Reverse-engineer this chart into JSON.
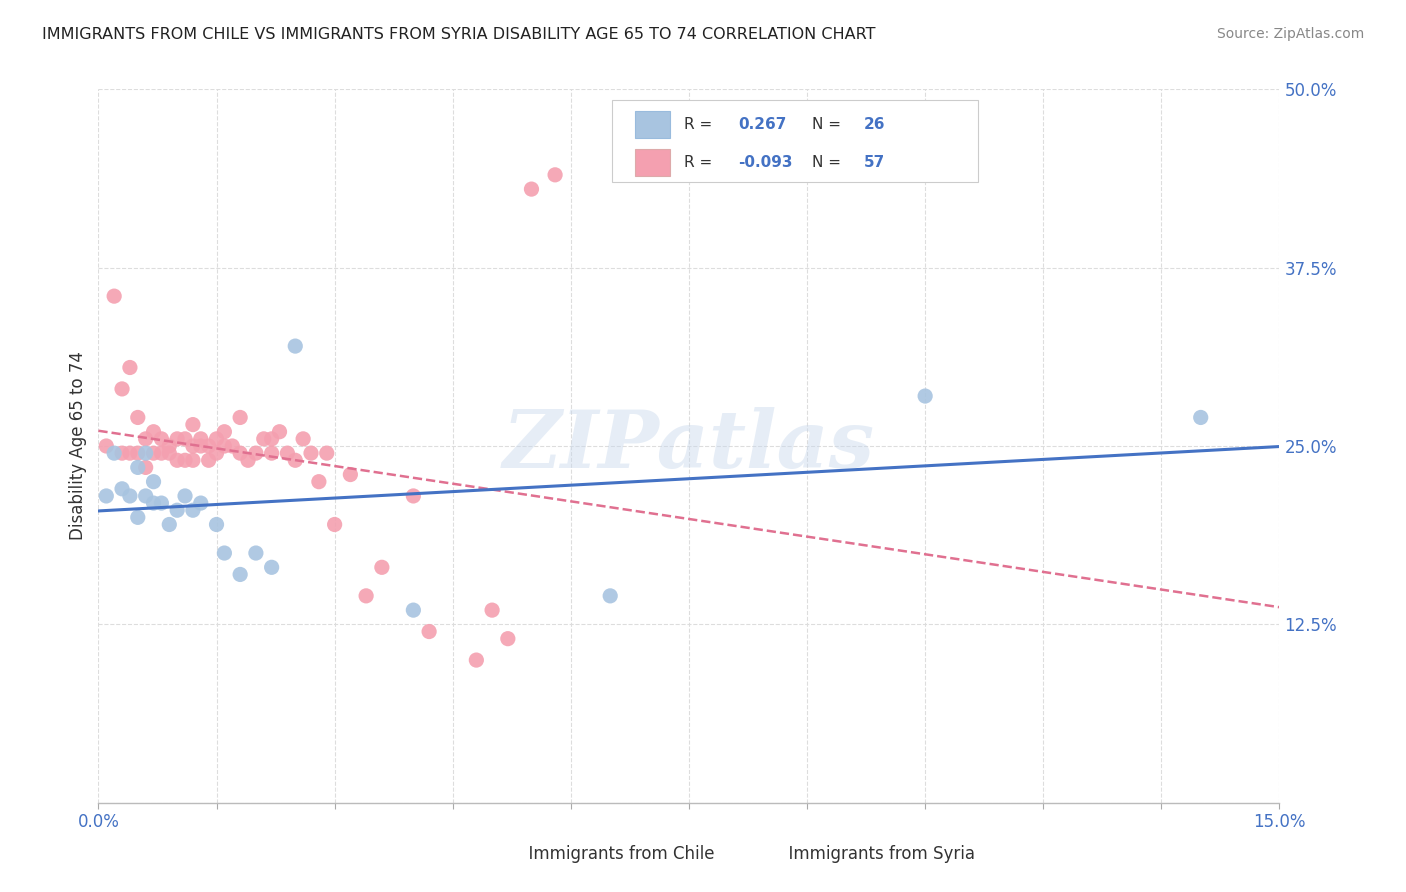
{
  "title": "IMMIGRANTS FROM CHILE VS IMMIGRANTS FROM SYRIA DISABILITY AGE 65 TO 74 CORRELATION CHART",
  "source": "Source: ZipAtlas.com",
  "ylabel": "Disability Age 65 to 74",
  "xlim": [
    0.0,
    0.15
  ],
  "ylim": [
    0.0,
    0.5
  ],
  "xticks": [
    0.0,
    0.015,
    0.03,
    0.045,
    0.06,
    0.075,
    0.09,
    0.105,
    0.12,
    0.135,
    0.15
  ],
  "xticklabels": [
    "0.0%",
    "",
    "",
    "",
    "",
    "",
    "",
    "",
    "",
    "",
    "15.0%"
  ],
  "yticks": [
    0.0,
    0.125,
    0.25,
    0.375,
    0.5
  ],
  "yticklabels": [
    "",
    "12.5%",
    "25.0%",
    "37.5%",
    "50.0%"
  ],
  "chile_color": "#a8c4e0",
  "syria_color": "#f4a0b0",
  "chile_line_color": "#4472c4",
  "syria_line_color": "#e07090",
  "chile_R": 0.267,
  "chile_N": 26,
  "syria_R": -0.093,
  "syria_N": 57,
  "background_color": "#ffffff",
  "grid_color": "#dddddd",
  "watermark": "ZIPatlas",
  "tick_color": "#4472c4",
  "chile_scatter_x": [
    0.001,
    0.002,
    0.003,
    0.004,
    0.005,
    0.005,
    0.006,
    0.006,
    0.007,
    0.007,
    0.008,
    0.009,
    0.01,
    0.011,
    0.012,
    0.013,
    0.015,
    0.016,
    0.018,
    0.02,
    0.022,
    0.025,
    0.04,
    0.065,
    0.105,
    0.14
  ],
  "chile_scatter_y": [
    0.215,
    0.245,
    0.22,
    0.215,
    0.235,
    0.2,
    0.245,
    0.215,
    0.225,
    0.21,
    0.21,
    0.195,
    0.205,
    0.215,
    0.205,
    0.21,
    0.195,
    0.175,
    0.16,
    0.175,
    0.165,
    0.32,
    0.135,
    0.145,
    0.285,
    0.27
  ],
  "syria_scatter_x": [
    0.001,
    0.002,
    0.003,
    0.003,
    0.004,
    0.004,
    0.005,
    0.005,
    0.006,
    0.006,
    0.007,
    0.007,
    0.008,
    0.008,
    0.009,
    0.009,
    0.01,
    0.01,
    0.011,
    0.011,
    0.012,
    0.012,
    0.012,
    0.013,
    0.013,
    0.014,
    0.014,
    0.015,
    0.015,
    0.016,
    0.016,
    0.017,
    0.018,
    0.018,
    0.019,
    0.02,
    0.021,
    0.022,
    0.022,
    0.023,
    0.024,
    0.025,
    0.026,
    0.027,
    0.028,
    0.029,
    0.03,
    0.032,
    0.034,
    0.036,
    0.04,
    0.042,
    0.048,
    0.05,
    0.052,
    0.055,
    0.058
  ],
  "syria_scatter_y": [
    0.25,
    0.355,
    0.29,
    0.245,
    0.305,
    0.245,
    0.27,
    0.245,
    0.255,
    0.235,
    0.26,
    0.245,
    0.245,
    0.255,
    0.25,
    0.245,
    0.255,
    0.24,
    0.255,
    0.24,
    0.25,
    0.24,
    0.265,
    0.25,
    0.255,
    0.25,
    0.24,
    0.255,
    0.245,
    0.25,
    0.26,
    0.25,
    0.245,
    0.27,
    0.24,
    0.245,
    0.255,
    0.245,
    0.255,
    0.26,
    0.245,
    0.24,
    0.255,
    0.245,
    0.225,
    0.245,
    0.195,
    0.23,
    0.145,
    0.165,
    0.215,
    0.12,
    0.1,
    0.135,
    0.115,
    0.43,
    0.44
  ]
}
